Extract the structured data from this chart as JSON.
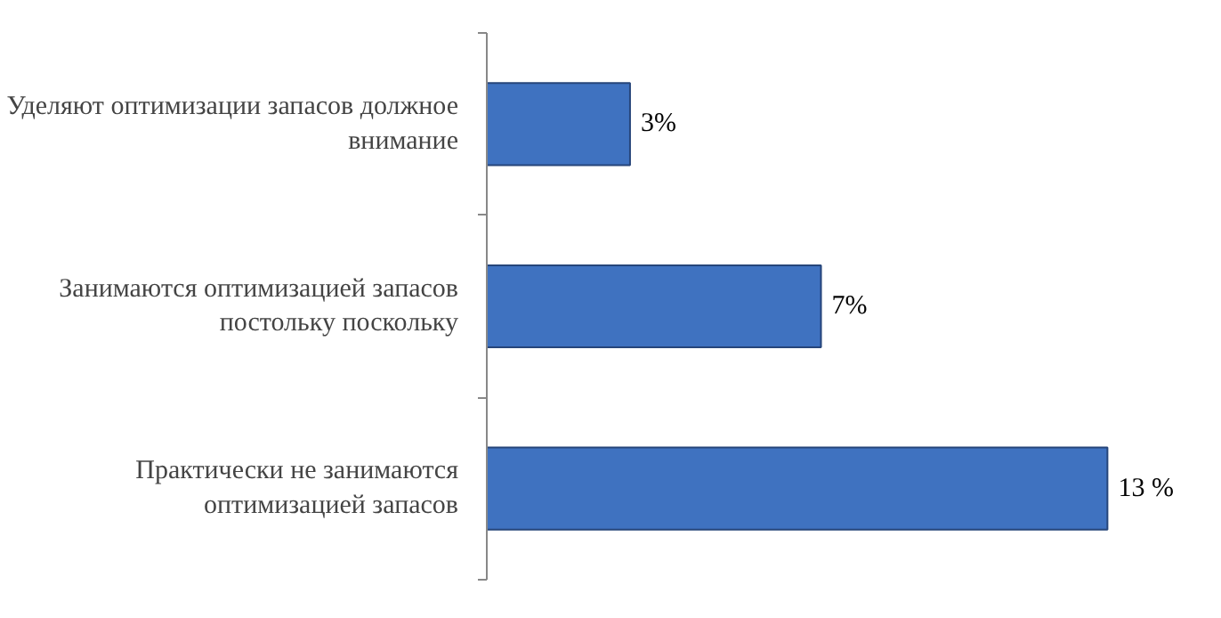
{
  "chart_data": {
    "type": "bar",
    "orientation": "horizontal",
    "categories": [
      "Уделяют оптимизации запасов должное внимание",
      "Занимаются оптимизацией запасов постольку поскольку",
      "Практически не занимаются оптимизацией запасов"
    ],
    "values": [
      3,
      7,
      13
    ],
    "value_labels": [
      "3%",
      "7%",
      "13 %"
    ],
    "color": "#3f72c0",
    "grid": false
  }
}
